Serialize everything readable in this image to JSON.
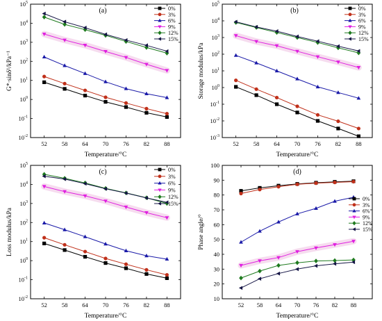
{
  "legend_labels": [
    "0%",
    "3%",
    "6%",
    "9%",
    "12%",
    "15%"
  ],
  "series_colors": [
    "#000000",
    "#c0301a",
    "#1a1aa8",
    "#e020e0",
    "#1e7a1e",
    "#151545"
  ],
  "markers": [
    "square",
    "circle",
    "triangle-up",
    "triangle-down",
    "diamond",
    "triangle-left"
  ],
  "chart_data": [
    {
      "panel_label": "(a)",
      "type": "line",
      "yscale": "log",
      "title": "",
      "xlabel": "Temperature/°C",
      "ylabel": "G*·sinδ¹/kPa⁻¹",
      "x": [
        52,
        58,
        64,
        70,
        76,
        82,
        88
      ],
      "xlim": [
        48,
        92
      ],
      "ylim": [
        0.01,
        100000
      ],
      "xticks": [
        "52",
        "58",
        "64",
        "70",
        "76",
        "82",
        "88"
      ],
      "yticks": [
        "10⁻²",
        "10⁻¹",
        "10⁰",
        "10¹",
        "10²",
        "10³",
        "10⁴",
        "10⁵"
      ],
      "legend_position": "top-right",
      "grid": false,
      "series": [
        {
          "name": "0%",
          "values": [
            8,
            3.6,
            1.6,
            0.75,
            0.4,
            0.2,
            0.12
          ]
        },
        {
          "name": "3%",
          "values": [
            16,
            6.8,
            3,
            1.3,
            0.65,
            0.33,
            0.18
          ]
        },
        {
          "name": "6%",
          "values": [
            170,
            60,
            23,
            8.5,
            3.7,
            2,
            1.25
          ]
        },
        {
          "name": "9%",
          "values": [
            2700,
            1300,
            700,
            330,
            160,
            70,
            33
          ]
        },
        {
          "name": "12%",
          "values": [
            21000,
            8700,
            4600,
            2300,
            1100,
            530,
            270
          ]
        },
        {
          "name": "15%",
          "values": [
            32000,
            12000,
            5800,
            2600,
            1300,
            690,
            340
          ]
        }
      ]
    },
    {
      "panel_label": "(b)",
      "type": "line",
      "yscale": "log",
      "title": "",
      "xlabel": "Temperature/°C",
      "ylabel": "Storage modulus/kPa",
      "x": [
        52,
        58,
        64,
        70,
        76,
        82,
        88
      ],
      "xlim": [
        48,
        92
      ],
      "ylim": [
        0.001,
        100000
      ],
      "xticks": [
        "52",
        "58",
        "64",
        "70",
        "76",
        "82",
        "88"
      ],
      "yticks": [
        "10⁻³",
        "10⁻²",
        "10⁻¹",
        "10⁰",
        "10¹",
        "10²",
        "10³",
        "10⁴",
        "10⁵"
      ],
      "legend_position": "top-right",
      "grid": false,
      "series": [
        {
          "name": "0%",
          "values": [
            1.1,
            0.35,
            0.1,
            0.032,
            0.01,
            0.0035,
            0.0012
          ]
        },
        {
          "name": "3%",
          "values": [
            2.7,
            0.8,
            0.25,
            0.075,
            0.023,
            0.0095,
            0.0035
          ]
        },
        {
          "name": "6%",
          "values": [
            85,
            30,
            10,
            3.3,
            1.1,
            0.5,
            0.23
          ]
        },
        {
          "name": "9%",
          "values": [
            1300,
            580,
            320,
            150,
            70,
            34,
            16
          ]
        },
        {
          "name": "12%",
          "values": [
            8000,
            4000,
            2000,
            1000,
            500,
            240,
            120
          ]
        },
        {
          "name": "15%",
          "values": [
            8800,
            4300,
            2400,
            1150,
            600,
            300,
            155
          ]
        }
      ]
    },
    {
      "panel_label": "(c)",
      "type": "line",
      "yscale": "log",
      "title": "",
      "xlabel": "Temperature/°C",
      "ylabel": "Loss modulus/kPa",
      "x": [
        52,
        58,
        64,
        70,
        76,
        82,
        88
      ],
      "xlim": [
        48,
        92
      ],
      "ylim": [
        0.01,
        100000
      ],
      "xticks": [
        "52",
        "58",
        "64",
        "70",
        "76",
        "82",
        "88"
      ],
      "yticks": [
        "10⁻²",
        "10⁻¹",
        "10⁰",
        "10¹",
        "10²",
        "10³",
        "10⁴",
        "10⁵"
      ],
      "legend_position": "top-right",
      "grid": false,
      "series": [
        {
          "name": "0%",
          "values": [
            8,
            3.6,
            1.6,
            0.75,
            0.4,
            0.2,
            0.12
          ]
        },
        {
          "name": "3%",
          "values": [
            16,
            6.8,
            3,
            1.3,
            0.65,
            0.33,
            0.18
          ]
        },
        {
          "name": "6%",
          "values": [
            95,
            42,
            18,
            7.5,
            3.3,
            1.8,
            1.2
          ]
        },
        {
          "name": "9%",
          "values": [
            7800,
            4200,
            2500,
            1350,
            650,
            330,
            180
          ]
        },
        {
          "name": "12%",
          "values": [
            34000,
            21000,
            12000,
            6200,
            3600,
            2000,
            1000
          ]
        },
        {
          "name": "15%",
          "values": [
            27000,
            19000,
            11000,
            5900,
            3500,
            1950,
            1150
          ]
        }
      ]
    },
    {
      "panel_label": "(d)",
      "type": "line",
      "yscale": "linear",
      "title": "",
      "xlabel": "Temperature/°C",
      "ylabel": "Phase angle/°",
      "x": [
        52,
        58,
        64,
        70,
        76,
        82,
        88
      ],
      "xlim": [
        46,
        94
      ],
      "ylim": [
        10,
        100
      ],
      "xticks": [
        "52",
        "58",
        "64",
        "70",
        "76",
        "82",
        "88"
      ],
      "yticks": [
        "10",
        "20",
        "30",
        "40",
        "50",
        "60",
        "70",
        "80",
        "90",
        "100"
      ],
      "legend_position": "right",
      "grid": false,
      "series": [
        {
          "name": "0%",
          "values": [
            82.8,
            84.8,
            86.3,
            87.5,
            88.3,
            88.9,
            89.3
          ]
        },
        {
          "name": "3%",
          "values": [
            81.0,
            83.7,
            85.6,
            87.2,
            88.0,
            88.5,
            89.0
          ]
        },
        {
          "name": "6%",
          "values": [
            48.2,
            55.6,
            61.8,
            67.3,
            71.0,
            75.8,
            78.5
          ]
        },
        {
          "name": "9%",
          "values": [
            32.5,
            35.6,
            37.8,
            41.8,
            44.3,
            46.5,
            48.8
          ]
        },
        {
          "name": "12%",
          "values": [
            24.0,
            28.7,
            32.5,
            34.3,
            35.5,
            35.8,
            36.2
          ]
        },
        {
          "name": "15%",
          "values": [
            17.3,
            23.5,
            27.0,
            30.0,
            32.2,
            33.6,
            34.7
          ]
        }
      ]
    }
  ]
}
